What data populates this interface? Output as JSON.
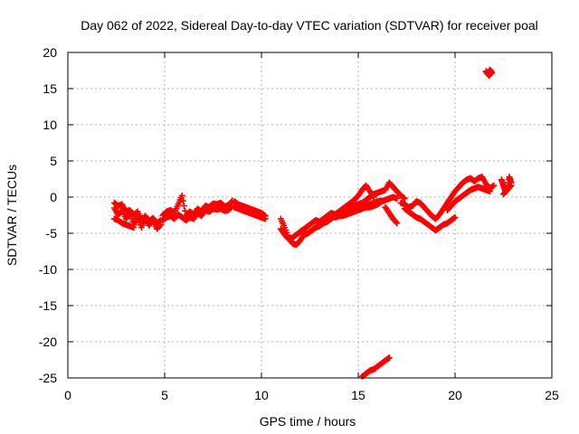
{
  "chart_data": {
    "type": "scatter",
    "title": "Day 062 of 2022, Sidereal Day-to-day VTEC variation (SDTVAR) for receiver poal",
    "xlabel": "GPS time / hours",
    "ylabel": "SDTVAR / TECUs",
    "xlim": [
      0,
      25
    ],
    "ylim": [
      -25,
      20
    ],
    "xticks": [
      0,
      5,
      10,
      15,
      20,
      25
    ],
    "yticks": [
      -25,
      -20,
      -15,
      -10,
      -5,
      0,
      5,
      10,
      15,
      20
    ],
    "grid": true,
    "marker": "plus",
    "color": "#ff0000",
    "series": [
      {
        "name": "SDTVAR",
        "segments": [
          {
            "x": [
              2.4,
              2.6,
              2.8,
              3.0,
              3.2,
              3.4,
              3.6,
              3.8,
              4.0,
              4.2,
              4.4,
              4.6,
              4.8
            ],
            "y": [
              -1.5,
              -2.5,
              -1.8,
              -3.0,
              -2.2,
              -3.8,
              -2.8,
              -4.2,
              -3.0,
              -3.9,
              -3.2,
              -4.4,
              -3.8
            ]
          },
          {
            "x": [
              2.4,
              2.6,
              2.8,
              3.0,
              3.2,
              3.4,
              3.6,
              3.8,
              4.0,
              4.2,
              4.4,
              4.6,
              4.8
            ],
            "y": [
              -0.8,
              -1.2,
              -1.0,
              -2.0,
              -1.8,
              -2.5,
              -2.0,
              -3.2,
              -2.6,
              -3.3,
              -2.9,
              -3.6,
              -3.2
            ]
          },
          {
            "x": [
              2.4,
              2.6,
              2.8,
              3.0,
              3.2,
              3.4
            ],
            "y": [
              -3.0,
              -3.2,
              -3.6,
              -3.8,
              -4.0,
              -4.2
            ]
          },
          {
            "x": [
              4.9,
              5.1,
              5.3,
              5.5,
              5.7,
              5.9,
              6.1,
              6.3,
              6.5,
              6.7,
              6.9,
              7.1,
              7.3,
              7.5,
              7.7,
              7.9,
              8.1,
              8.3,
              8.5
            ],
            "y": [
              -2.5,
              -2.0,
              -1.8,
              -2.2,
              -1.0,
              0.2,
              -2.6,
              -2.0,
              -2.4,
              -1.6,
              -2.0,
              -1.2,
              -1.4,
              -0.9,
              -1.0,
              -0.8,
              -1.3,
              -1.1,
              -0.5
            ]
          },
          {
            "x": [
              4.9,
              5.1,
              5.3,
              5.5,
              5.7,
              5.9,
              6.1,
              6.3,
              6.5,
              6.7,
              6.9,
              7.1,
              7.3,
              7.5,
              7.7,
              7.9,
              8.1,
              8.3,
              8.5
            ],
            "y": [
              -3.2,
              -2.8,
              -2.6,
              -3.0,
              -2.4,
              -2.8,
              -3.2,
              -2.8,
              -3.0,
              -2.2,
              -2.6,
              -1.8,
              -2.0,
              -1.6,
              -1.7,
              -1.6,
              -1.9,
              -1.8,
              -1.2
            ]
          },
          {
            "x": [
              8.6,
              8.8,
              9.0,
              9.2,
              9.4,
              9.6,
              9.8,
              10.0,
              10.2
            ],
            "y": [
              -0.6,
              -1.0,
              -1.2,
              -1.4,
              -1.6,
              -1.8,
              -2.0,
              -2.2,
              -2.6
            ]
          },
          {
            "x": [
              8.6,
              8.8,
              9.0,
              9.2,
              9.4,
              9.6,
              9.8,
              10.0,
              10.2
            ],
            "y": [
              -1.4,
              -1.6,
              -1.8,
              -2.0,
              -2.2,
              -2.4,
              -2.6,
              -2.8,
              -3.0
            ]
          },
          {
            "x": [
              11.0,
              11.2,
              11.4,
              11.6,
              11.8,
              12.0,
              12.2,
              12.4,
              12.6,
              12.8,
              13.0,
              13.2,
              13.4,
              13.6,
              13.8,
              14.0,
              14.2,
              14.4,
              14.6,
              14.8,
              15.0,
              15.2,
              15.4,
              15.6,
              15.8,
              16.0,
              16.2
            ],
            "y": [
              -3.0,
              -4.2,
              -5.6,
              -6.4,
              -6.6,
              -6.0,
              -5.2,
              -5.0,
              -4.6,
              -4.2,
              -4.0,
              -3.6,
              -3.4,
              -3.0,
              -2.6,
              -2.4,
              -2.0,
              -1.6,
              -1.4,
              -1.2,
              -1.0,
              -0.8,
              -0.9,
              -1.0,
              -0.8,
              -0.6,
              -0.5
            ]
          },
          {
            "x": [
              11.0,
              11.2,
              11.4,
              11.6,
              11.8,
              12.0,
              12.2,
              12.4,
              12.6,
              12.8,
              13.0,
              13.2,
              13.4,
              13.6,
              13.8,
              14.0,
              14.2,
              14.4,
              14.6,
              14.8,
              15.0,
              15.2,
              15.4,
              15.6,
              15.8
            ],
            "y": [
              -4.4,
              -5.2,
              -5.8,
              -5.6,
              -5.2,
              -4.8,
              -4.4,
              -4.0,
              -3.6,
              -3.2,
              -3.4,
              -3.0,
              -2.6,
              -2.2,
              -2.4,
              -2.0,
              -1.6,
              -1.2,
              -0.8,
              -0.4,
              0.2,
              1.0,
              1.6,
              0.8,
              0.0
            ]
          },
          {
            "x": [
              13.8,
              14.0,
              14.2,
              14.4,
              14.6,
              14.8,
              15.0,
              15.2,
              15.4,
              15.6,
              15.8,
              16.0,
              16.2,
              16.4,
              16.6,
              16.8,
              17.0
            ],
            "y": [
              -2.8,
              -2.6,
              -2.6,
              -2.4,
              -2.2,
              -2.0,
              -1.8,
              -1.6,
              -1.4,
              -1.4,
              -1.2,
              -1.0,
              -0.6,
              -0.4,
              -0.2,
              0.0,
              -0.2
            ]
          },
          {
            "x": [
              15.0,
              15.2,
              15.4,
              15.6,
              15.8,
              16.0,
              16.2,
              16.4,
              16.6,
              16.8,
              17.0,
              17.2,
              17.4
            ],
            "y": [
              -1.2,
              -0.8,
              -0.4,
              0.0,
              0.4,
              0.6,
              0.8,
              1.0,
              2.0,
              1.4,
              0.8,
              0.2,
              -0.2
            ]
          },
          {
            "x": [
              16.4,
              16.6,
              16.8,
              17.0
            ],
            "y": [
              -1.4,
              -2.2,
              -3.0,
              -3.6
            ]
          },
          {
            "x": [
              17.4,
              17.6,
              17.8,
              18.0,
              18.2,
              18.4,
              18.6,
              18.8,
              19.0,
              19.2,
              19.4,
              19.6,
              19.8,
              20.0
            ],
            "y": [
              -1.6,
              -2.0,
              -2.4,
              -2.8,
              -3.0,
              -3.4,
              -3.8,
              -4.2,
              -4.6,
              -4.2,
              -3.8,
              -3.6,
              -3.2,
              -2.8
            ]
          },
          {
            "x": [
              17.2,
              17.4,
              17.6,
              17.8,
              18.0,
              18.2,
              18.4,
              18.6,
              18.8,
              19.0,
              19.2,
              19.4,
              19.6,
              19.8,
              20.0,
              20.2,
              20.4,
              20.6,
              20.8,
              21.0,
              21.2,
              21.4,
              21.6,
              21.8,
              22.0
            ],
            "y": [
              -0.8,
              -1.0,
              -1.4,
              -1.2,
              -0.6,
              -0.8,
              -1.4,
              -2.0,
              -2.6,
              -3.0,
              -2.4,
              -1.6,
              -0.8,
              0.0,
              0.8,
              1.4,
              2.0,
              2.4,
              2.6,
              2.2,
              2.6,
              2.8,
              1.8,
              1.2,
              1.6
            ]
          },
          {
            "x": [
              19.6,
              19.8,
              20.0,
              20.2,
              20.4,
              20.6,
              20.8,
              21.0,
              21.2,
              21.4,
              21.6,
              21.8
            ],
            "y": [
              -1.8,
              -1.2,
              -0.6,
              -0.2,
              0.2,
              0.6,
              1.0,
              1.2,
              1.4,
              1.2,
              1.0,
              0.8
            ]
          },
          {
            "x": [
              22.4,
              22.5,
              22.6,
              22.7,
              22.8,
              22.9,
              22.5,
              22.7,
              22.9
            ],
            "y": [
              2.4,
              1.6,
              0.8,
              1.2,
              2.8,
              2.0,
              0.4,
              1.0,
              1.6
            ]
          },
          {
            "x": [
              21.6,
              21.7,
              21.8,
              21.9,
              21.75
            ],
            "y": [
              17.4,
              17.0,
              17.6,
              17.2,
              16.8
            ]
          },
          {
            "x": [
              15.2,
              15.4,
              15.6,
              15.8,
              16.0,
              16.2,
              16.4,
              16.6
            ],
            "y": [
              -24.8,
              -24.4,
              -24.0,
              -23.8,
              -23.4,
              -23.0,
              -22.6,
              -22.2
            ]
          }
        ]
      }
    ]
  }
}
